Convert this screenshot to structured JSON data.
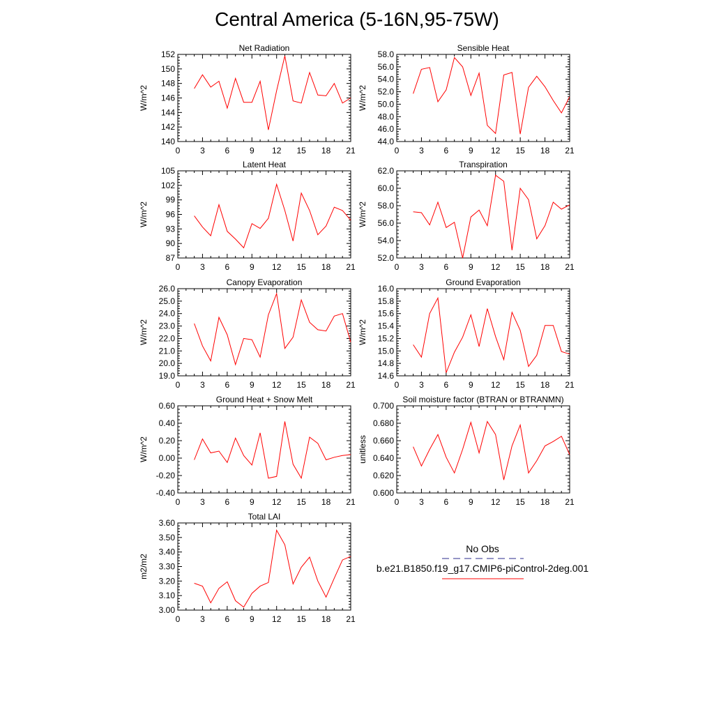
{
  "title": "Central America (5-16N,95-75W)",
  "chart_data": [
    {
      "type": "line",
      "title": "Net Radiation",
      "ylabel": "W/m^2",
      "ylim": [
        140,
        152
      ],
      "yticks": [
        "140",
        "142",
        "144",
        "146",
        "148",
        "150",
        "152"
      ],
      "xlim": [
        0,
        21
      ],
      "xticks": [
        "0",
        "3",
        "6",
        "9",
        "12",
        "15",
        "18",
        "21"
      ],
      "series": [
        {
          "name": "b.e21.B1850.f19_g17.CMIP6-piControl-2deg.001",
          "x": [
            2,
            3,
            4,
            5,
            6,
            7,
            8,
            9,
            10,
            11,
            12,
            13,
            14,
            15,
            16,
            17,
            18,
            19,
            20,
            21
          ],
          "values": [
            147.3,
            149.2,
            147.5,
            148.3,
            144.6,
            148.7,
            145.4,
            145.4,
            148.3,
            141.6,
            147.0,
            151.8,
            145.6,
            145.3,
            149.5,
            146.4,
            146.3,
            148.0,
            145.3,
            146.0
          ]
        }
      ]
    },
    {
      "type": "line",
      "title": "Sensible Heat",
      "ylabel": "W/m^2",
      "ylim": [
        44,
        58
      ],
      "yticks": [
        "44.0",
        "46.0",
        "48.0",
        "50.0",
        "52.0",
        "54.0",
        "56.0",
        "58.0"
      ],
      "xlim": [
        0,
        21
      ],
      "xticks": [
        "0",
        "3",
        "6",
        "9",
        "12",
        "15",
        "18",
        "21"
      ],
      "series": [
        {
          "name": "b.e21.B1850.f19_g17.CMIP6-piControl-2deg.001",
          "x": [
            2,
            3,
            4,
            5,
            6,
            7,
            8,
            9,
            10,
            11,
            12,
            13,
            14,
            15,
            16,
            17,
            18,
            19,
            20,
            21
          ],
          "values": [
            51.7,
            55.6,
            55.9,
            50.4,
            52.3,
            57.5,
            56.0,
            51.4,
            55.0,
            46.6,
            45.3,
            54.7,
            55.1,
            45.2,
            52.7,
            54.5,
            52.8,
            50.6,
            48.6,
            51.2
          ]
        }
      ]
    },
    {
      "type": "line",
      "title": "Latent Heat",
      "ylabel": "W/m^2",
      "ylim": [
        87,
        105
      ],
      "yticks": [
        "87",
        "90",
        "93",
        "96",
        "99",
        "102",
        "105"
      ],
      "xlim": [
        0,
        21
      ],
      "xticks": [
        "0",
        "3",
        "6",
        "9",
        "12",
        "15",
        "18",
        "21"
      ],
      "series": [
        {
          "name": "b.e21.B1850.f19_g17.CMIP6-piControl-2deg.001",
          "x": [
            2,
            3,
            4,
            5,
            6,
            7,
            8,
            9,
            10,
            11,
            12,
            13,
            14,
            15,
            16,
            17,
            18,
            19,
            20,
            21
          ],
          "values": [
            95.7,
            93.4,
            91.6,
            98.0,
            92.5,
            90.9,
            89.1,
            94.1,
            93.1,
            95.2,
            102.2,
            96.8,
            90.5,
            100.4,
            96.8,
            91.8,
            93.6,
            97.5,
            96.8,
            94.8
          ]
        }
      ]
    },
    {
      "type": "line",
      "title": "Transpiration",
      "ylabel": "W/m^2",
      "ylim": [
        52,
        62
      ],
      "yticks": [
        "52.0",
        "54.0",
        "56.0",
        "58.0",
        "60.0",
        "62.0"
      ],
      "xlim": [
        0,
        21
      ],
      "xticks": [
        "0",
        "3",
        "6",
        "9",
        "12",
        "15",
        "18",
        "21"
      ],
      "series": [
        {
          "name": "b.e21.B1850.f19_g17.CMIP6-piControl-2deg.001",
          "x": [
            2,
            3,
            4,
            5,
            6,
            7,
            8,
            9,
            10,
            11,
            12,
            13,
            14,
            15,
            16,
            17,
            18,
            19,
            20,
            21
          ],
          "values": [
            57.3,
            57.2,
            55.8,
            58.4,
            55.5,
            56.1,
            52.0,
            56.7,
            57.5,
            55.7,
            61.5,
            60.8,
            52.9,
            60.0,
            58.7,
            54.2,
            55.7,
            58.4,
            57.6,
            58.1
          ]
        }
      ]
    },
    {
      "type": "line",
      "title": "Canopy Evaporation",
      "ylabel": "W/m^2",
      "ylim": [
        19,
        26
      ],
      "yticks": [
        "19.0",
        "20.0",
        "21.0",
        "22.0",
        "23.0",
        "24.0",
        "25.0",
        "26.0"
      ],
      "xlim": [
        0,
        21
      ],
      "xticks": [
        "0",
        "3",
        "6",
        "9",
        "12",
        "15",
        "18",
        "21"
      ],
      "series": [
        {
          "name": "b.e21.B1850.f19_g17.CMIP6-piControl-2deg.001",
          "x": [
            2,
            3,
            4,
            5,
            6,
            7,
            8,
            9,
            10,
            11,
            12,
            13,
            14,
            15,
            16,
            17,
            18,
            19,
            20,
            21
          ],
          "values": [
            23.2,
            21.4,
            20.2,
            23.7,
            22.3,
            19.9,
            22.0,
            21.9,
            20.5,
            23.9,
            25.6,
            21.2,
            22.1,
            25.1,
            23.3,
            22.7,
            22.6,
            23.8,
            24.0,
            21.7
          ]
        }
      ]
    },
    {
      "type": "line",
      "title": "Ground Evaporation",
      "ylabel": "W/m^2",
      "ylim": [
        14.6,
        16.0
      ],
      "yticks": [
        "14.6",
        "14.8",
        "15.0",
        "15.2",
        "15.4",
        "15.6",
        "15.8",
        "16.0"
      ],
      "xlim": [
        0,
        21
      ],
      "xticks": [
        "0",
        "3",
        "6",
        "9",
        "12",
        "15",
        "18",
        "21"
      ],
      "series": [
        {
          "name": "b.e21.B1850.f19_g17.CMIP6-piControl-2deg.001",
          "x": [
            2,
            3,
            4,
            5,
            6,
            7,
            8,
            9,
            10,
            11,
            12,
            13,
            14,
            15,
            16,
            17,
            18,
            19,
            20,
            21
          ],
          "values": [
            15.1,
            14.9,
            15.6,
            15.85,
            14.65,
            14.98,
            15.22,
            15.58,
            15.07,
            15.68,
            15.23,
            14.86,
            15.62,
            15.33,
            14.75,
            14.93,
            15.41,
            15.41,
            14.99,
            14.95
          ]
        }
      ]
    },
    {
      "type": "line",
      "title": "Ground Heat + Snow Melt",
      "ylabel": "W/m^2",
      "ylim": [
        -0.4,
        0.6
      ],
      "yticks": [
        "-0.40",
        "-0.20",
        "0.00",
        "0.20",
        "0.40",
        "0.60"
      ],
      "xlim": [
        0,
        21
      ],
      "xticks": [
        "0",
        "3",
        "6",
        "9",
        "12",
        "15",
        "18",
        "21"
      ],
      "series": [
        {
          "name": "b.e21.B1850.f19_g17.CMIP6-piControl-2deg.001",
          "x": [
            2,
            3,
            4,
            5,
            6,
            7,
            8,
            9,
            10,
            11,
            12,
            13,
            14,
            15,
            16,
            17,
            18,
            19,
            20,
            21
          ],
          "values": [
            -0.02,
            0.22,
            0.06,
            0.08,
            -0.05,
            0.23,
            0.03,
            -0.08,
            0.29,
            -0.23,
            -0.21,
            0.42,
            -0.07,
            -0.23,
            0.24,
            0.17,
            -0.02,
            0.01,
            0.03,
            0.04
          ]
        }
      ]
    },
    {
      "type": "line",
      "title": "Soil moisture factor (BTRAN or BTRANMN)",
      "ylabel": "unitless",
      "ylim": [
        0.6,
        0.7
      ],
      "yticks": [
        "0.600",
        "0.620",
        "0.640",
        "0.660",
        "0.680",
        "0.700"
      ],
      "xlim": [
        0,
        21
      ],
      "xticks": [
        "0",
        "3",
        "6",
        "9",
        "12",
        "15",
        "18",
        "21"
      ],
      "series": [
        {
          "name": "b.e21.B1850.f19_g17.CMIP6-piControl-2deg.001",
          "x": [
            2,
            3,
            4,
            5,
            6,
            7,
            8,
            9,
            10,
            11,
            12,
            13,
            14,
            15,
            16,
            17,
            18,
            19,
            20,
            21
          ],
          "values": [
            0.653,
            0.631,
            0.65,
            0.667,
            0.641,
            0.623,
            0.65,
            0.681,
            0.646,
            0.682,
            0.667,
            0.615,
            0.654,
            0.678,
            0.623,
            0.637,
            0.654,
            0.659,
            0.665,
            0.644
          ]
        }
      ]
    },
    {
      "type": "line",
      "title": "Total LAI",
      "ylabel": "m2/m2",
      "ylim": [
        3.0,
        3.6
      ],
      "yticks": [
        "3.00",
        "3.10",
        "3.20",
        "3.30",
        "3.40",
        "3.50",
        "3.60"
      ],
      "xlim": [
        0,
        21
      ],
      "xticks": [
        "0",
        "3",
        "6",
        "9",
        "12",
        "15",
        "18",
        "21"
      ],
      "series": [
        {
          "name": "b.e21.B1850.f19_g17.CMIP6-piControl-2deg.001",
          "x": [
            2,
            3,
            4,
            5,
            6,
            7,
            8,
            9,
            10,
            11,
            12,
            13,
            14,
            15,
            16,
            17,
            18,
            19,
            20,
            21
          ],
          "values": [
            3.185,
            3.165,
            3.05,
            3.15,
            3.195,
            3.065,
            3.02,
            3.115,
            3.165,
            3.19,
            3.55,
            3.45,
            3.18,
            3.295,
            3.365,
            3.2,
            3.09,
            3.22,
            3.345,
            3.37
          ]
        }
      ]
    }
  ],
  "legend": {
    "obs_label": "No Obs",
    "model_label": "b.e21.B1850.f19_g17.CMIP6-piControl-2deg.001",
    "obs_color": "#2b2b8c",
    "model_color": "#ff0000"
  },
  "colors": {
    "line": "#ff0000",
    "axis": "#000000"
  }
}
